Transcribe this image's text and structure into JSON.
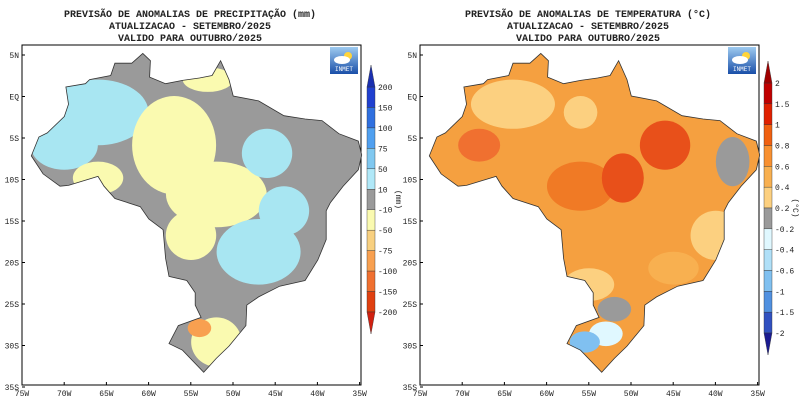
{
  "maps": [
    {
      "title": [
        "PREVISÃO DE ANOMALIAS DE PRECIPITAÇÃO (mm)",
        "ATUALIZACAO - SETEMBRO/2025",
        "VALIDO PARA OUTUBRO/2025"
      ],
      "lat_labels": [
        "5N",
        "EQ",
        "5S",
        "10S",
        "15S",
        "20S",
        "25S",
        "30S",
        "35S"
      ],
      "lon_labels": [
        "75W",
        "70W",
        "65W",
        "60W",
        "55W",
        "50W",
        "45W",
        "40W",
        "35W"
      ],
      "colorbar": {
        "labels": [
          "200",
          "150",
          "100",
          "75",
          "50",
          "10",
          "-10",
          "-50",
          "-75",
          "-100",
          "-150",
          "-200"
        ],
        "unit": "(mm)"
      },
      "logo": "INMET"
    },
    {
      "title": [
        "PREVISÃO DE ANOMALIAS DE TEMPERATURA (°C)",
        "ATUALIZACAO - SETEMBRO/2025",
        "VALIDO PARA OUTUBRO/2025"
      ],
      "lat_labels": [
        "5N",
        "EQ",
        "5S",
        "10S",
        "15S",
        "20S",
        "25S",
        "30S",
        "35S"
      ],
      "lon_labels": [
        "75W",
        "70W",
        "65W",
        "60W",
        "55W",
        "50W",
        "45W",
        "40W",
        "35W"
      ],
      "colorbar": {
        "labels": [
          "2",
          "1.5",
          "1",
          "0.8",
          "0.6",
          "0.4",
          "0.2",
          "-0.2",
          "-0.4",
          "-0.6",
          "-1",
          "-1.5",
          "-2"
        ],
        "unit": "(°C)"
      },
      "logo": "INMET"
    }
  ]
}
